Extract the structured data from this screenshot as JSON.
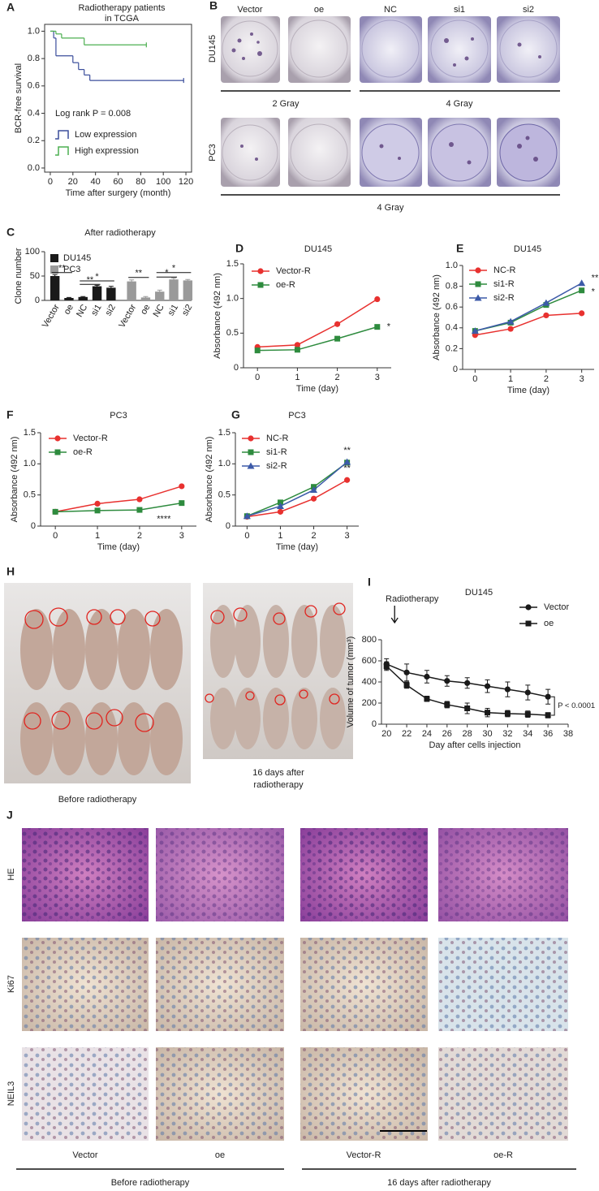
{
  "chart_data": [
    {
      "panel": "A",
      "type": "step",
      "title": [
        "Radiotherapy patients",
        "in TCGA"
      ],
      "xlabel": "Time after surgery (month)",
      "ylabel": "BCR-free survival",
      "annotation": "Log rank P = 0.008",
      "xlim": [
        -5,
        125
      ],
      "xticks": [
        0,
        20,
        40,
        60,
        80,
        100,
        120
      ],
      "ylim": [
        -0.03,
        1.05
      ],
      "yticks": [
        {
          "value": 0,
          "label": "0.0"
        },
        0.2,
        0.4,
        0.6,
        0.8,
        {
          "value": 1,
          "label": "1.0"
        }
      ],
      "legend": "lower left",
      "series": [
        {
          "name": "Low expression",
          "color": "#3b4e9c",
          "x": [
            0,
            3,
            5,
            20,
            25,
            30,
            35,
            118
          ],
          "values": [
            1.0,
            0.95,
            0.82,
            0.77,
            0.72,
            0.68,
            0.64,
            0.64
          ]
        },
        {
          "name": "High expression",
          "color": "#4caf50",
          "x": [
            0,
            5,
            10,
            30,
            85
          ],
          "values": [
            1.0,
            0.98,
            0.95,
            0.9,
            0.9
          ]
        }
      ]
    },
    {
      "panel": "C",
      "type": "bar",
      "title": "After radiotherapy",
      "ylabel": "Clone number",
      "categories": [
        "Vector",
        "oe",
        "NC",
        "si1",
        "si2",
        "Vector",
        "oe",
        "NC",
        "si1",
        "si2"
      ],
      "ylim": [
        0,
        100
      ],
      "yticks": [
        0,
        50,
        100
      ],
      "legend": "upper left",
      "series": [
        {
          "name": "DU145",
          "color": "#1a1a1a",
          "values": [
            50,
            5,
            7,
            29,
            26,
            null,
            null,
            null,
            null,
            null
          ],
          "errors": [
            3,
            1,
            1,
            2,
            3,
            null,
            null,
            null,
            null,
            null
          ]
        },
        {
          "name": "PC3",
          "color": "#9a9a9a",
          "values": [
            null,
            null,
            null,
            null,
            null,
            39,
            6,
            18,
            43,
            41
          ],
          "errors": [
            null,
            null,
            null,
            null,
            null,
            3,
            2,
            3,
            3,
            2
          ]
        }
      ],
      "annotations": [
        "**",
        "**",
        "*",
        "**",
        "*",
        "*"
      ]
    },
    {
      "panel": "D",
      "type": "line",
      "title": "DU145",
      "xlabel": "Time (day)",
      "ylabel": "Absorbance (492 nm)",
      "x": [
        0,
        1,
        2,
        3
      ],
      "xlim": [
        -0.35,
        3.35
      ],
      "xticks": [
        0,
        1,
        2,
        3
      ],
      "ylim": [
        0,
        1.5
      ],
      "yticks": [
        0,
        0.5,
        {
          "value": 1,
          "label": "1.0"
        },
        1.5
      ],
      "legend": "upper left",
      "series": [
        {
          "name": "Vector-R",
          "color": "#e8312f",
          "marker": "circle",
          "values": [
            0.3,
            0.33,
            0.63,
            0.99
          ]
        },
        {
          "name": "oe-R",
          "color": "#2e8b3e",
          "marker": "square",
          "values": [
            0.25,
            0.26,
            0.42,
            0.59
          ]
        }
      ],
      "annotations": [
        "*"
      ]
    },
    {
      "panel": "E",
      "type": "line",
      "title": "DU145",
      "xlabel": "Time (day)",
      "ylabel": "Absorbance (492 nm)",
      "x": [
        0,
        1,
        2,
        3
      ],
      "xlim": [
        -0.35,
        3.35
      ],
      "xticks": [
        0,
        1,
        2,
        3
      ],
      "ylim": [
        0,
        1
      ],
      "yticks": [
        0,
        0.2,
        0.4,
        0.6,
        0.8,
        {
          "value": 1,
          "label": "1.0"
        }
      ],
      "legend": "upper left",
      "series": [
        {
          "name": "NC-R",
          "color": "#e8312f",
          "marker": "circle",
          "values": [
            0.33,
            0.39,
            0.52,
            0.54
          ]
        },
        {
          "name": "si1-R",
          "color": "#2e8b3e",
          "marker": "square",
          "values": [
            0.37,
            0.45,
            0.62,
            0.76
          ]
        },
        {
          "name": "si2-R",
          "color": "#3c5aa8",
          "marker": "triangle",
          "values": [
            0.37,
            0.46,
            0.64,
            0.83
          ]
        }
      ],
      "annotations": [
        "**",
        "*"
      ]
    },
    {
      "panel": "F",
      "type": "line",
      "title": "PC3",
      "xlabel": "Time (day)",
      "ylabel": "Absorbance (492 nm)",
      "x": [
        0,
        1,
        2,
        3
      ],
      "xlim": [
        -0.35,
        3.35
      ],
      "xticks": [
        0,
        1,
        2,
        3
      ],
      "ylim": [
        0,
        1.5
      ],
      "yticks": [
        0,
        0.5,
        {
          "value": 1,
          "label": "1.0"
        },
        1.5
      ],
      "legend": "upper left",
      "series": [
        {
          "name": "Vector-R",
          "color": "#e8312f",
          "marker": "circle",
          "values": [
            0.23,
            0.36,
            0.43,
            0.64
          ]
        },
        {
          "name": "oe-R",
          "color": "#2e8b3e",
          "marker": "square",
          "values": [
            0.23,
            0.25,
            0.26,
            0.37
          ]
        }
      ],
      "annotations": [
        "****"
      ]
    },
    {
      "panel": "G",
      "type": "line",
      "title": "PC3",
      "xlabel": "Time (day)",
      "ylabel": "Absorbance (492 nm)",
      "x": [
        0,
        1,
        2,
        3
      ],
      "xlim": [
        -0.35,
        3.35
      ],
      "xticks": [
        0,
        1,
        2,
        3
      ],
      "ylim": [
        0,
        1.5
      ],
      "yticks": [
        0,
        0.5,
        {
          "value": 1,
          "label": "1.0"
        },
        1.5
      ],
      "legend": "upper left",
      "series": [
        {
          "name": "NC-R",
          "color": "#e8312f",
          "marker": "circle",
          "values": [
            0.15,
            0.23,
            0.44,
            0.74
          ]
        },
        {
          "name": "si1-R",
          "color": "#2e8b3e",
          "marker": "square",
          "values": [
            0.16,
            0.38,
            0.63,
            1.02
          ]
        },
        {
          "name": "si2-R",
          "color": "#3c5aa8",
          "marker": "triangle",
          "values": [
            0.16,
            0.32,
            0.58,
            1.03
          ]
        }
      ],
      "annotations": [
        "**",
        "**"
      ]
    },
    {
      "panel": "I",
      "type": "line",
      "title": "DU145",
      "xlabel": "Day after cells injection",
      "ylabel": "Volume of tumor (mm³)",
      "x": [
        20,
        22,
        24,
        26,
        28,
        30,
        32,
        34,
        36
      ],
      "xlim": [
        19.5,
        38
      ],
      "xticks": [
        20,
        22,
        24,
        26,
        28,
        30,
        32,
        34,
        36,
        38
      ],
      "ylim": [
        0,
        800
      ],
      "yticks": [
        0,
        200,
        400,
        600,
        800
      ],
      "legend": "upper right",
      "series": [
        {
          "name": "Vector",
          "color": "#1a1a1a",
          "marker": "circle",
          "values": [
            570,
            490,
            450,
            410,
            390,
            360,
            330,
            300,
            260
          ],
          "errors": [
            50,
            80,
            60,
            50,
            50,
            60,
            70,
            70,
            70
          ]
        },
        {
          "name": "oe",
          "color": "#1a1a1a",
          "marker": "square",
          "values": [
            550,
            370,
            240,
            185,
            150,
            110,
            100,
            95,
            85
          ],
          "errors": [
            40,
            30,
            25,
            30,
            50,
            40,
            30,
            30,
            25
          ]
        }
      ],
      "annotations": [
        "Radiotherapy",
        "P < 0.0001"
      ]
    }
  ],
  "figures": {
    "B": {
      "panel": "B",
      "columns": [
        "Vector",
        "oe",
        "NC",
        "si1",
        "si2"
      ],
      "rows": [
        "DU145",
        "PC3"
      ],
      "doses": [
        "2 Gray",
        "4 Gray",
        "4 Gray"
      ]
    },
    "H": {
      "panel": "H",
      "captions": [
        [
          "Before radiotherapy"
        ],
        [
          "16 days after",
          "radiotherapy"
        ]
      ]
    },
    "J": {
      "panel": "J",
      "rows": [
        "HE",
        "Ki67",
        "NEIL3"
      ],
      "columns": [
        "Vector",
        "oe",
        "Vector-R",
        "oe-R"
      ],
      "groups": [
        "Before radiotherapy",
        "16 days after radiotherapy"
      ]
    }
  }
}
